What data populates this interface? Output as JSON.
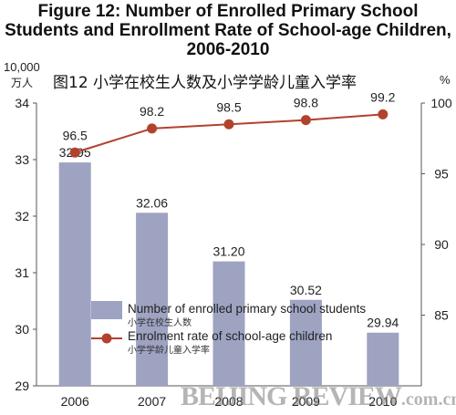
{
  "chart_data": {
    "type": "bar",
    "title": "Figure 12: Number of Enrolled Primary School Students and Enrollment Rate of School-age Children, 2006-2010",
    "title_zh": "图12 小学在校生人数及小学学龄儿童入学率",
    "categories": [
      "2006",
      "2007",
      "2008",
      "2009",
      "2010"
    ],
    "series": [
      {
        "name": "Number of enrolled primary school students",
        "name_zh": "小学在校生人数",
        "type": "bar",
        "axis": "left",
        "values": [
          32.95,
          32.06,
          31.2,
          30.52,
          29.94
        ],
        "labels": [
          "32.95",
          "32.06",
          "31.20",
          "30.52",
          "29.94"
        ],
        "color": "#9ea3c2"
      },
      {
        "name": "Enrolment rate of school-age children",
        "name_zh": "小学学龄儿童入学率",
        "type": "line",
        "axis": "right",
        "values": [
          96.5,
          98.2,
          98.5,
          98.8,
          99.2
        ],
        "labels": [
          "96.5",
          "98.2",
          "98.5",
          "98.8",
          "99.2"
        ],
        "color": "#b2422e"
      }
    ],
    "y_left": {
      "unit_line1": "10,000",
      "unit_line2": "万人",
      "ylim": [
        29,
        34
      ],
      "ticks": [
        "29",
        "30",
        "31",
        "32",
        "33",
        "34"
      ]
    },
    "y_right": {
      "unit": "%",
      "ylim": [
        80,
        100
      ],
      "ticks": [
        "85",
        "90",
        "95",
        "100"
      ]
    },
    "grid": false,
    "legend_position": "bottom-center"
  },
  "watermark": {
    "main": "BEIJING REVIEW",
    "suffix": ".com.cn"
  }
}
